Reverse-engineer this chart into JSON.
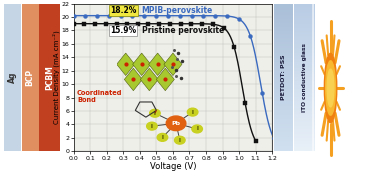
{
  "xlabel": "Voltage (V)",
  "ylabel": "Current Density (mA cm⁻²)",
  "xlim": [
    0.0,
    1.2
  ],
  "ylim": [
    0,
    22
  ],
  "yticks": [
    0,
    2,
    4,
    6,
    8,
    10,
    12,
    14,
    16,
    18,
    20,
    22
  ],
  "xticks": [
    0.0,
    0.1,
    0.2,
    0.3,
    0.4,
    0.5,
    0.6,
    0.7,
    0.8,
    0.9,
    1.0,
    1.1,
    1.2
  ],
  "mpib_label": "18.2%",
  "mpib_desc": "MPIB-perovskite",
  "pristine_label": "15.9%",
  "pristine_desc": "Pristine perovskite",
  "coord_label": "Coordinated\nBond",
  "mpib_color": "#3a6abf",
  "pristine_color": "#111111",
  "plot_bg": "#efefea",
  "ag_color": "#c5d5e5",
  "bcp_color": "#e09060",
  "pcbm_color": "#c04020",
  "petdot_color_top": "#aabfd8",
  "petdot_color_bot": "#d0e0f0",
  "ito_color_top": "#b8cce4",
  "ito_color_bot": "#e8f0f8",
  "sun_color": "#f5a020",
  "sun_inner": "#f08010",
  "label_bg_yellow": "#f0e840",
  "label_bg_white": "#ffffff",
  "coord_color": "#cc2200",
  "inset_perov_color": "#90c020",
  "inset_mol_color": "#e8f0e0"
}
